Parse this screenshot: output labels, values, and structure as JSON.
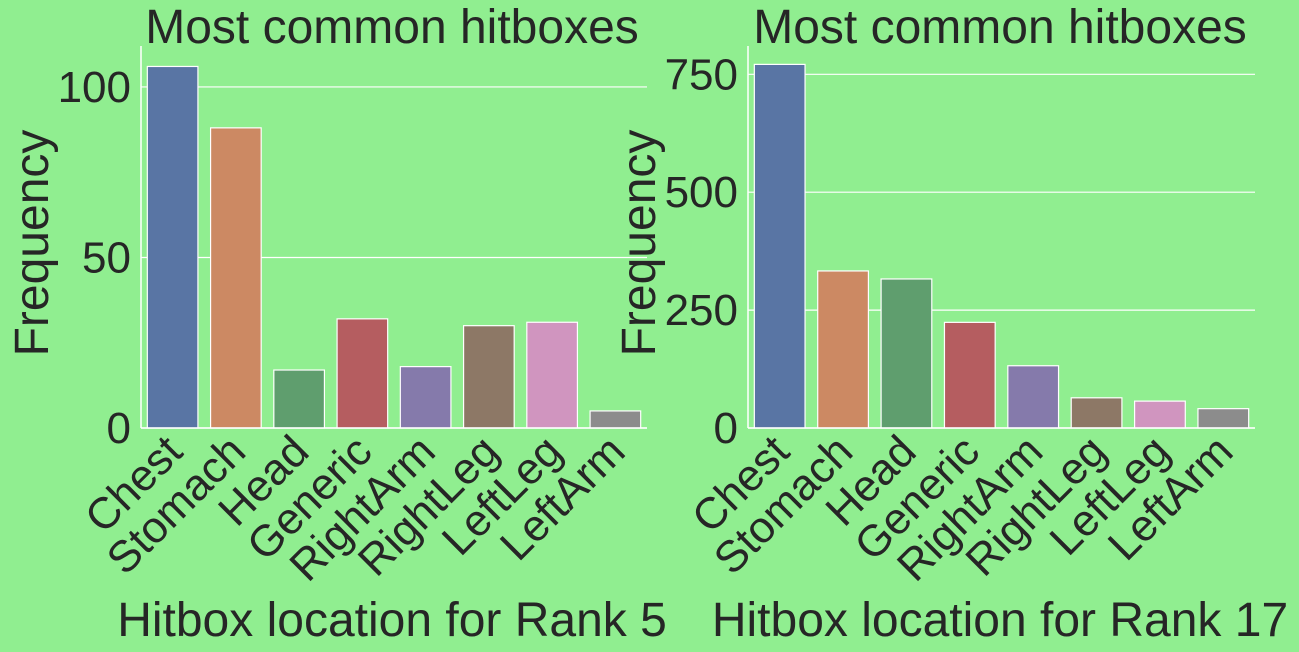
{
  "background_color": "#90ee90",
  "bar_colors": [
    "#5975a4",
    "#cc8963",
    "#5f9e6e",
    "#b55d60",
    "#857aab",
    "#8d7866",
    "#d095bf",
    "#8c8c8c"
  ],
  "chart_data": [
    {
      "type": "bar",
      "title": "Most common hitboxes",
      "xlabel": "Hitbox location for Rank 5",
      "ylabel": "Frequency",
      "categories": [
        "Chest",
        "Stomach",
        "Head",
        "Generic",
        "RightArm",
        "RightLeg",
        "LeftLeg",
        "LeftArm"
      ],
      "values": [
        106,
        88,
        17,
        32,
        18,
        30,
        31,
        5
      ],
      "ylim": [
        0,
        112
      ],
      "yticks": [
        0,
        50,
        100
      ],
      "grid": "y",
      "legend": "none"
    },
    {
      "type": "bar",
      "title": "Most common hitboxes",
      "xlabel": "Hitbox location for Rank 17",
      "ylabel": "Frequency",
      "categories": [
        "Chest",
        "Stomach",
        "Head",
        "Generic",
        "RightArm",
        "RightLeg",
        "LeftLeg",
        "LeftArm"
      ],
      "values": [
        771,
        333,
        316,
        224,
        132,
        64,
        57,
        41
      ],
      "ylim": [
        0,
        810
      ],
      "yticks": [
        0,
        250,
        500,
        750
      ],
      "grid": "y",
      "legend": "none"
    }
  ]
}
